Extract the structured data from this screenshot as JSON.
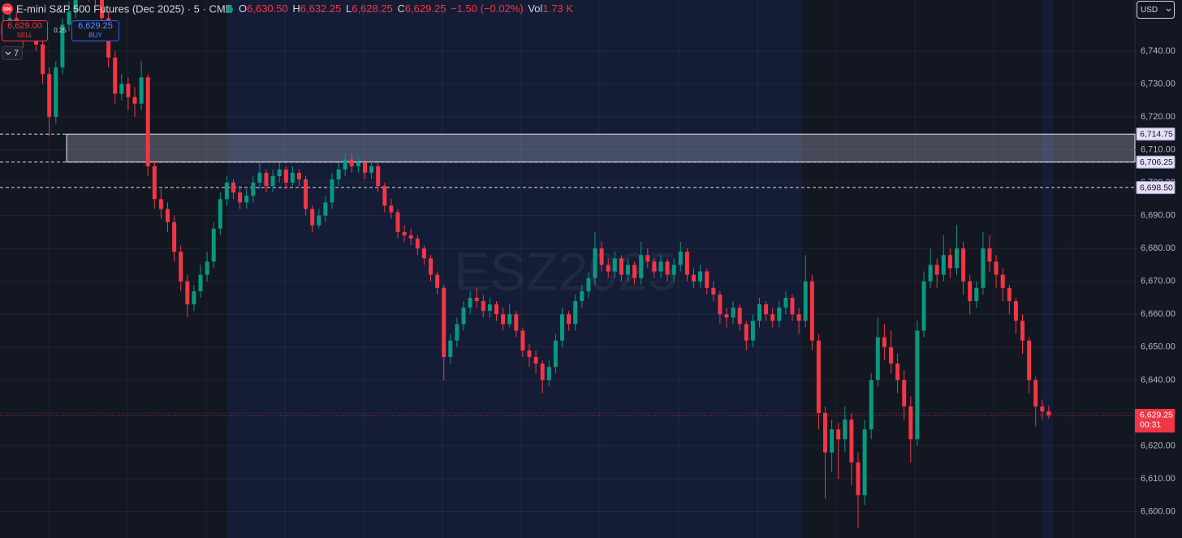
{
  "chart_data": {
    "type": "candlestick",
    "header": {
      "icon": "500",
      "title": "E-mini S&P 500 Futures (Dec 2025) · 5 · CME",
      "open_key": "O",
      "open": "6,630.50",
      "high_key": "H",
      "high": "6,632.25",
      "low_key": "L",
      "low": "6,628.25",
      "close_key": "C",
      "close": "6,629.25",
      "change": "−1.50 (−0.02%)",
      "volume_key": "Vol",
      "volume": "1.73 K"
    },
    "trade": {
      "sell_price": "6,629.00",
      "sell": "SELL",
      "spread": "0.25",
      "buy_price": "6,629.25",
      "buy": "BUY"
    },
    "indicators_count": "7",
    "currency": "USD",
    "watermark": "ESZ2025",
    "up_color": "#089981",
    "down_color": "#f23645",
    "ylim": [
      6592,
      6755.5
    ],
    "yticks": [
      {
        "value": 6600,
        "label": "6,600.00"
      },
      {
        "value": 6610,
        "label": "6,610.00"
      },
      {
        "value": 6620,
        "label": "6,620.00"
      },
      {
        "value": 6630,
        "label": "6,630.00"
      },
      {
        "value": 6640,
        "label": "6,640.00"
      },
      {
        "value": 6650,
        "label": "6,650.00"
      },
      {
        "value": 6660,
        "label": "6,660.00"
      },
      {
        "value": 6670,
        "label": "6,670.00"
      },
      {
        "value": 6680,
        "label": "6,680.00"
      },
      {
        "value": 6690,
        "label": "6,690.00"
      },
      {
        "value": 6700,
        "label": "6,700.00"
      },
      {
        "value": 6710,
        "label": "6,710.00"
      },
      {
        "value": 6720,
        "label": "6,720.00"
      },
      {
        "value": 6730,
        "label": "6,730.00"
      },
      {
        "value": 6740,
        "label": "6,740.00"
      }
    ],
    "grid": true,
    "levels": [
      {
        "value": 6714.75,
        "label": "6,714.75"
      },
      {
        "value": 6706.25,
        "label": "6,706.25"
      },
      {
        "value": 6698.5,
        "label": "6,698.50"
      }
    ],
    "last_price": {
      "value": 6629.25,
      "label": "6,629.25"
    },
    "countdown": "00:31",
    "ohlc": [
      [
        6745,
        6751,
        6743,
        6748
      ],
      [
        6748,
        6753,
        6746,
        6750
      ],
      [
        6750,
        6752,
        6744,
        6747
      ],
      [
        6747,
        6749,
        6741,
        6745
      ],
      [
        6745,
        6749,
        6743,
        6746
      ],
      [
        6746,
        6748,
        6740,
        6742
      ],
      [
        6742,
        6744,
        6730,
        6733
      ],
      [
        6733,
        6735,
        6714,
        6720
      ],
      [
        6720,
        6737,
        6718,
        6735
      ],
      [
        6735,
        6750,
        6733,
        6748
      ],
      [
        6748,
        6755,
        6746,
        6752
      ],
      [
        6752,
        6760,
        6750,
        6758
      ],
      [
        6758,
        6763,
        6756,
        6760
      ],
      [
        6760,
        6762,
        6755,
        6758
      ],
      [
        6758,
        6761,
        6754,
        6757
      ],
      [
        6757,
        6759,
        6748,
        6750
      ],
      [
        6750,
        6752,
        6735,
        6738
      ],
      [
        6738,
        6740,
        6724,
        6727
      ],
      [
        6727,
        6733,
        6725,
        6730
      ],
      [
        6730,
        6732,
        6722,
        6726
      ],
      [
        6726,
        6729,
        6720,
        6724
      ],
      [
        6724,
        6737,
        6722,
        6732
      ],
      [
        6732,
        6733,
        6702,
        6705
      ],
      [
        6705,
        6707,
        6692,
        6695
      ],
      [
        6695,
        6698,
        6689,
        6692
      ],
      [
        6692,
        6694,
        6685,
        6688
      ],
      [
        6688,
        6690,
        6676,
        6679
      ],
      [
        6679,
        6681,
        6667,
        6670
      ],
      [
        6670,
        6672,
        6659,
        6663
      ],
      [
        6663,
        6669,
        6661,
        6667
      ],
      [
        6667,
        6675,
        6665,
        6672
      ],
      [
        6672,
        6679,
        6670,
        6676
      ],
      [
        6676,
        6688,
        6674,
        6686
      ],
      [
        6686,
        6697,
        6684,
        6695
      ],
      [
        6695,
        6702,
        6693,
        6700
      ],
      [
        6700,
        6701,
        6695,
        6697
      ],
      [
        6697,
        6699,
        6692,
        6694
      ],
      [
        6694,
        6698,
        6692,
        6696
      ],
      [
        6696,
        6702,
        6694,
        6700
      ],
      [
        6700,
        6706,
        6698,
        6703
      ],
      [
        6703,
        6704,
        6697,
        6699
      ],
      [
        6699,
        6704,
        6697,
        6702
      ],
      [
        6702,
        6706,
        6700,
        6704
      ],
      [
        6704,
        6705,
        6698,
        6700
      ],
      [
        6700,
        6705,
        6699,
        6703
      ],
      [
        6703,
        6704,
        6699,
        6701
      ],
      [
        6701,
        6702,
        6690,
        6692
      ],
      [
        6692,
        6693,
        6685,
        6687
      ],
      [
        6687,
        6692,
        6686,
        6690
      ],
      [
        6690,
        6696,
        6688,
        6694
      ],
      [
        6694,
        6703,
        6692,
        6701
      ],
      [
        6701,
        6706,
        6699,
        6704
      ],
      [
        6704,
        6709,
        6702,
        6707
      ],
      [
        6707,
        6709,
        6703,
        6705
      ],
      [
        6705,
        6708,
        6703,
        6706
      ],
      [
        6706,
        6707,
        6701,
        6703
      ],
      [
        6703,
        6707,
        6701,
        6705
      ],
      [
        6705,
        6706,
        6697,
        6699
      ],
      [
        6699,
        6700,
        6691,
        6693
      ],
      [
        6693,
        6695,
        6689,
        6691
      ],
      [
        6691,
        6692,
        6683,
        6685
      ],
      [
        6685,
        6687,
        6682,
        6684
      ],
      [
        6684,
        6686,
        6681,
        6683
      ],
      [
        6683,
        6684,
        6678,
        6680
      ],
      [
        6680,
        6681,
        6675,
        6677
      ],
      [
        6677,
        6678,
        6670,
        6672
      ],
      [
        6672,
        6673,
        6666,
        6668
      ],
      [
        6668,
        6669,
        6640,
        6647
      ],
      [
        6647,
        6654,
        6645,
        6652
      ],
      [
        6652,
        6659,
        6650,
        6657
      ],
      [
        6657,
        6664,
        6655,
        6662
      ],
      [
        6662,
        6667,
        6660,
        6665
      ],
      [
        6665,
        6668,
        6662,
        6664
      ],
      [
        6664,
        6666,
        6659,
        6661
      ],
      [
        6661,
        6665,
        6659,
        6663
      ],
      [
        6663,
        6664,
        6658,
        6660
      ],
      [
        6660,
        6662,
        6655,
        6657
      ],
      [
        6657,
        6663,
        6656,
        6660
      ],
      [
        6660,
        6661,
        6653,
        6655
      ],
      [
        6655,
        6656,
        6647,
        6649
      ],
      [
        6649,
        6651,
        6644,
        6647
      ],
      [
        6647,
        6649,
        6642,
        6645
      ],
      [
        6645,
        6646,
        6636,
        6640
      ],
      [
        6640,
        6646,
        6638,
        6644
      ],
      [
        6644,
        6654,
        6642,
        6652
      ],
      [
        6652,
        6662,
        6650,
        6660
      ],
      [
        6660,
        6661,
        6655,
        6657
      ],
      [
        6657,
        6666,
        6655,
        6664
      ],
      [
        6664,
        6669,
        6662,
        6667
      ],
      [
        6667,
        6673,
        6665,
        6671
      ],
      [
        6671,
        6685,
        6669,
        6680
      ],
      [
        6680,
        6682,
        6673,
        6675
      ],
      [
        6675,
        6677,
        6671,
        6673
      ],
      [
        6673,
        6679,
        6671,
        6677
      ],
      [
        6677,
        6678,
        6670,
        6672
      ],
      [
        6672,
        6677,
        6670,
        6675
      ],
      [
        6675,
        6676,
        6669,
        6671
      ],
      [
        6671,
        6682,
        6669,
        6678
      ],
      [
        6678,
        6680,
        6674,
        6676
      ],
      [
        6676,
        6677,
        6671,
        6673
      ],
      [
        6673,
        6678,
        6671,
        6676
      ],
      [
        6676,
        6677,
        6670,
        6672
      ],
      [
        6672,
        6677,
        6670,
        6675
      ],
      [
        6675,
        6682,
        6673,
        6679
      ],
      [
        6679,
        6680,
        6670,
        6672
      ],
      [
        6672,
        6674,
        6668,
        6670
      ],
      [
        6670,
        6675,
        6668,
        6673
      ],
      [
        6673,
        6674,
        6666,
        6668
      ],
      [
        6668,
        6670,
        6664,
        6666
      ],
      [
        6666,
        6667,
        6657,
        6660
      ],
      [
        6660,
        6662,
        6656,
        6659
      ],
      [
        6659,
        6664,
        6657,
        6662
      ],
      [
        6662,
        6663,
        6655,
        6657
      ],
      [
        6657,
        6658,
        6649,
        6652
      ],
      [
        6652,
        6660,
        6650,
        6658
      ],
      [
        6658,
        6665,
        6656,
        6663
      ],
      [
        6663,
        6664,
        6658,
        6660
      ],
      [
        6660,
        6662,
        6656,
        6658
      ],
      [
        6658,
        6664,
        6656,
        6662
      ],
      [
        6662,
        6667,
        6660,
        6665
      ],
      [
        6665,
        6666,
        6658,
        6660
      ],
      [
        6660,
        6662,
        6654,
        6658
      ],
      [
        6658,
        6678,
        6656,
        6670
      ],
      [
        6670,
        6672,
        6649,
        6652
      ],
      [
        6652,
        6654,
        6625,
        6630
      ],
      [
        6630,
        6632,
        6604,
        6618
      ],
      [
        6618,
        6628,
        6612,
        6625
      ],
      [
        6625,
        6627,
        6610,
        6622
      ],
      [
        6622,
        6632,
        6618,
        6628
      ],
      [
        6628,
        6630,
        6608,
        6615
      ],
      [
        6615,
        6618,
        6595,
        6605
      ],
      [
        6605,
        6628,
        6602,
        6625
      ],
      [
        6625,
        6642,
        6622,
        6640
      ],
      [
        6640,
        6659,
        6638,
        6653
      ],
      [
        6653,
        6657,
        6646,
        6650
      ],
      [
        6650,
        6655,
        6642,
        6645
      ],
      [
        6645,
        6648,
        6636,
        6640
      ],
      [
        6640,
        6643,
        6628,
        6632
      ],
      [
        6632,
        6635,
        6615,
        6622
      ],
      [
        6622,
        6658,
        6620,
        6655
      ],
      [
        6655,
        6673,
        6653,
        6670
      ],
      [
        6670,
        6680,
        6668,
        6675
      ],
      [
        6675,
        6677,
        6668,
        6672
      ],
      [
        6672,
        6684,
        6670,
        6678
      ],
      [
        6678,
        6680,
        6671,
        6674
      ],
      [
        6674,
        6687,
        6672,
        6680
      ],
      [
        6680,
        6682,
        6666,
        6670
      ],
      [
        6670,
        6672,
        6660,
        6664
      ],
      [
        6664,
        6670,
        6662,
        6668
      ],
      [
        6668,
        6685,
        6666,
        6680
      ],
      [
        6680,
        6684,
        6673,
        6676
      ],
      [
        6676,
        6678,
        6668,
        6672
      ],
      [
        6672,
        6674,
        6664,
        6668
      ],
      [
        6668,
        6669,
        6660,
        6664
      ],
      [
        6664,
        6665,
        6654,
        6658
      ],
      [
        6658,
        6660,
        6648,
        6652
      ],
      [
        6652,
        6653,
        6636,
        6640
      ],
      [
        6640,
        6641,
        6626,
        6632
      ],
      [
        6632,
        6634,
        6628,
        6630.5
      ],
      [
        6630.5,
        6632.25,
        6628.25,
        6629.25
      ]
    ]
  }
}
